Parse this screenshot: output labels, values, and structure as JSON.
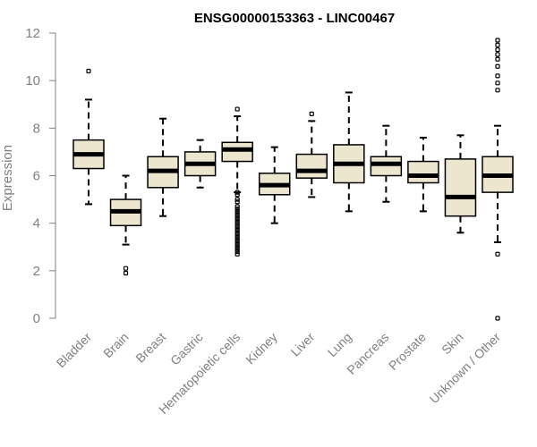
{
  "chart_data": {
    "type": "boxplot",
    "title": "ENSG00000153363 - LINC00467",
    "ylabel": "Expression",
    "xlabel": "",
    "ylim": [
      0,
      12
    ],
    "yticks": [
      0,
      2,
      4,
      6,
      8,
      10,
      12
    ],
    "grid": false,
    "colors": {
      "box_fill": "#ede6cf",
      "box_stroke": "#000000",
      "median": "#000000",
      "axis": "#808080"
    },
    "categories": [
      "Bladder",
      "Brain",
      "Breast",
      "Gastric",
      "Hematopoietic cells",
      "Kidney",
      "Liver",
      "Lung",
      "Pancreas",
      "Prostate",
      "Skin",
      "Unknown / Other"
    ],
    "boxes": [
      {
        "q1": 6.3,
        "median": 6.9,
        "q3": 7.5,
        "whisker_low": 4.8,
        "whisker_high": 9.2,
        "outliers": [
          10.4
        ]
      },
      {
        "q1": 3.9,
        "median": 4.5,
        "q3": 5.0,
        "whisker_low": 3.1,
        "whisker_high": 6.0,
        "outliers": [
          2.1,
          1.9
        ]
      },
      {
        "q1": 5.5,
        "median": 6.2,
        "q3": 6.8,
        "whisker_low": 4.3,
        "whisker_high": 8.4,
        "outliers": []
      },
      {
        "q1": 6.0,
        "median": 6.5,
        "q3": 7.0,
        "whisker_low": 5.5,
        "whisker_high": 7.5,
        "outliers": []
      },
      {
        "q1": 6.6,
        "median": 7.1,
        "q3": 7.4,
        "whisker_low": 5.3,
        "whisker_high": 8.5,
        "outliers": [
          8.8,
          5.3,
          5.2,
          5.0,
          4.9,
          4.7,
          4.6,
          4.5,
          4.4,
          4.3,
          4.2,
          4.1,
          4.0,
          3.9,
          3.8,
          3.7,
          3.6,
          3.5,
          3.4,
          3.3,
          3.2,
          3.1,
          3.0,
          2.9,
          2.8,
          2.7
        ]
      },
      {
        "q1": 5.2,
        "median": 5.6,
        "q3": 6.1,
        "whisker_low": 4.0,
        "whisker_high": 7.2,
        "outliers": []
      },
      {
        "q1": 5.9,
        "median": 6.2,
        "q3": 6.9,
        "whisker_low": 5.1,
        "whisker_high": 8.3,
        "outliers": [
          8.6
        ]
      },
      {
        "q1": 5.7,
        "median": 6.5,
        "q3": 7.3,
        "whisker_low": 4.5,
        "whisker_high": 9.5,
        "outliers": []
      },
      {
        "q1": 6.0,
        "median": 6.5,
        "q3": 6.8,
        "whisker_low": 4.9,
        "whisker_high": 8.1,
        "outliers": []
      },
      {
        "q1": 5.7,
        "median": 6.0,
        "q3": 6.6,
        "whisker_low": 4.5,
        "whisker_high": 7.6,
        "outliers": []
      },
      {
        "q1": 4.3,
        "median": 5.1,
        "q3": 6.7,
        "whisker_low": 3.6,
        "whisker_high": 7.7,
        "outliers": []
      },
      {
        "q1": 5.3,
        "median": 6.0,
        "q3": 6.8,
        "whisker_low": 3.2,
        "whisker_high": 8.1,
        "outliers": [
          11.7,
          11.5,
          11.3,
          11.1,
          10.9,
          10.6,
          10.2,
          9.9,
          9.6,
          2.7,
          0.0
        ]
      }
    ]
  }
}
